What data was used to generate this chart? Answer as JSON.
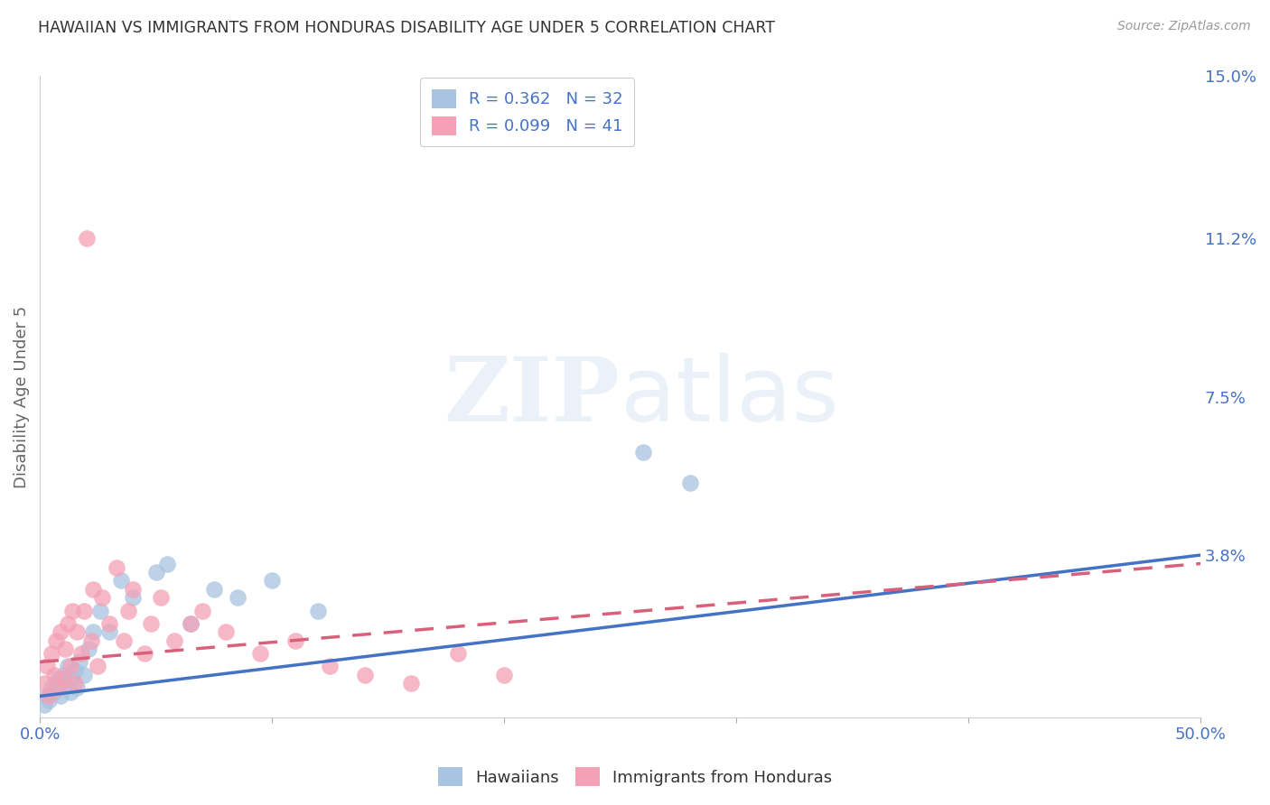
{
  "title": "HAWAIIAN VS IMMIGRANTS FROM HONDURAS DISABILITY AGE UNDER 5 CORRELATION CHART",
  "source": "Source: ZipAtlas.com",
  "ylabel": "Disability Age Under 5",
  "xlim": [
    0.0,
    0.5
  ],
  "ylim": [
    0.0,
    0.15
  ],
  "xticks": [
    0.0,
    0.1,
    0.2,
    0.3,
    0.4,
    0.5
  ],
  "xtick_labels": [
    "0.0%",
    "",
    "",
    "",
    "",
    "50.0%"
  ],
  "ytick_labels": [
    "15.0%",
    "11.2%",
    "7.5%",
    "3.8%",
    ""
  ],
  "yticks": [
    0.15,
    0.112,
    0.075,
    0.038,
    0.0
  ],
  "hawaiians_R": 0.362,
  "hawaiians_N": 32,
  "honduras_R": 0.099,
  "honduras_N": 41,
  "hawaiian_color": "#a8c4e0",
  "honduras_color": "#f4a0b5",
  "hawaiian_line_color": "#4472c4",
  "honduras_line_color": "#d9607a",
  "grid_color": "#cccccc",
  "background_color": "#ffffff",
  "hawaiians_x": [
    0.002,
    0.003,
    0.004,
    0.005,
    0.006,
    0.007,
    0.008,
    0.009,
    0.01,
    0.011,
    0.012,
    0.013,
    0.014,
    0.015,
    0.016,
    0.017,
    0.019,
    0.021,
    0.023,
    0.026,
    0.03,
    0.035,
    0.04,
    0.05,
    0.055,
    0.065,
    0.075,
    0.085,
    0.1,
    0.12,
    0.26,
    0.28
  ],
  "hawaiians_y": [
    0.003,
    0.005,
    0.004,
    0.007,
    0.006,
    0.008,
    0.009,
    0.005,
    0.01,
    0.008,
    0.012,
    0.006,
    0.009,
    0.011,
    0.007,
    0.013,
    0.01,
    0.016,
    0.02,
    0.025,
    0.02,
    0.032,
    0.028,
    0.034,
    0.036,
    0.022,
    0.03,
    0.028,
    0.032,
    0.025,
    0.062,
    0.055
  ],
  "honduras_x": [
    0.002,
    0.003,
    0.004,
    0.005,
    0.006,
    0.007,
    0.008,
    0.009,
    0.01,
    0.011,
    0.012,
    0.013,
    0.014,
    0.015,
    0.016,
    0.018,
    0.019,
    0.02,
    0.022,
    0.023,
    0.025,
    0.027,
    0.03,
    0.033,
    0.036,
    0.038,
    0.04,
    0.045,
    0.048,
    0.052,
    0.058,
    0.065,
    0.07,
    0.08,
    0.095,
    0.11,
    0.125,
    0.14,
    0.16,
    0.18,
    0.2
  ],
  "honduras_y": [
    0.008,
    0.012,
    0.005,
    0.015,
    0.01,
    0.018,
    0.007,
    0.02,
    0.009,
    0.016,
    0.022,
    0.012,
    0.025,
    0.008,
    0.02,
    0.015,
    0.025,
    0.112,
    0.018,
    0.03,
    0.012,
    0.028,
    0.022,
    0.035,
    0.018,
    0.025,
    0.03,
    0.015,
    0.022,
    0.028,
    0.018,
    0.022,
    0.025,
    0.02,
    0.015,
    0.018,
    0.012,
    0.01,
    0.008,
    0.015,
    0.01
  ],
  "hawaiian_line_start_y": 0.005,
  "hawaiian_line_end_y": 0.038,
  "honduras_line_start_y": 0.013,
  "honduras_line_end_y": 0.036
}
